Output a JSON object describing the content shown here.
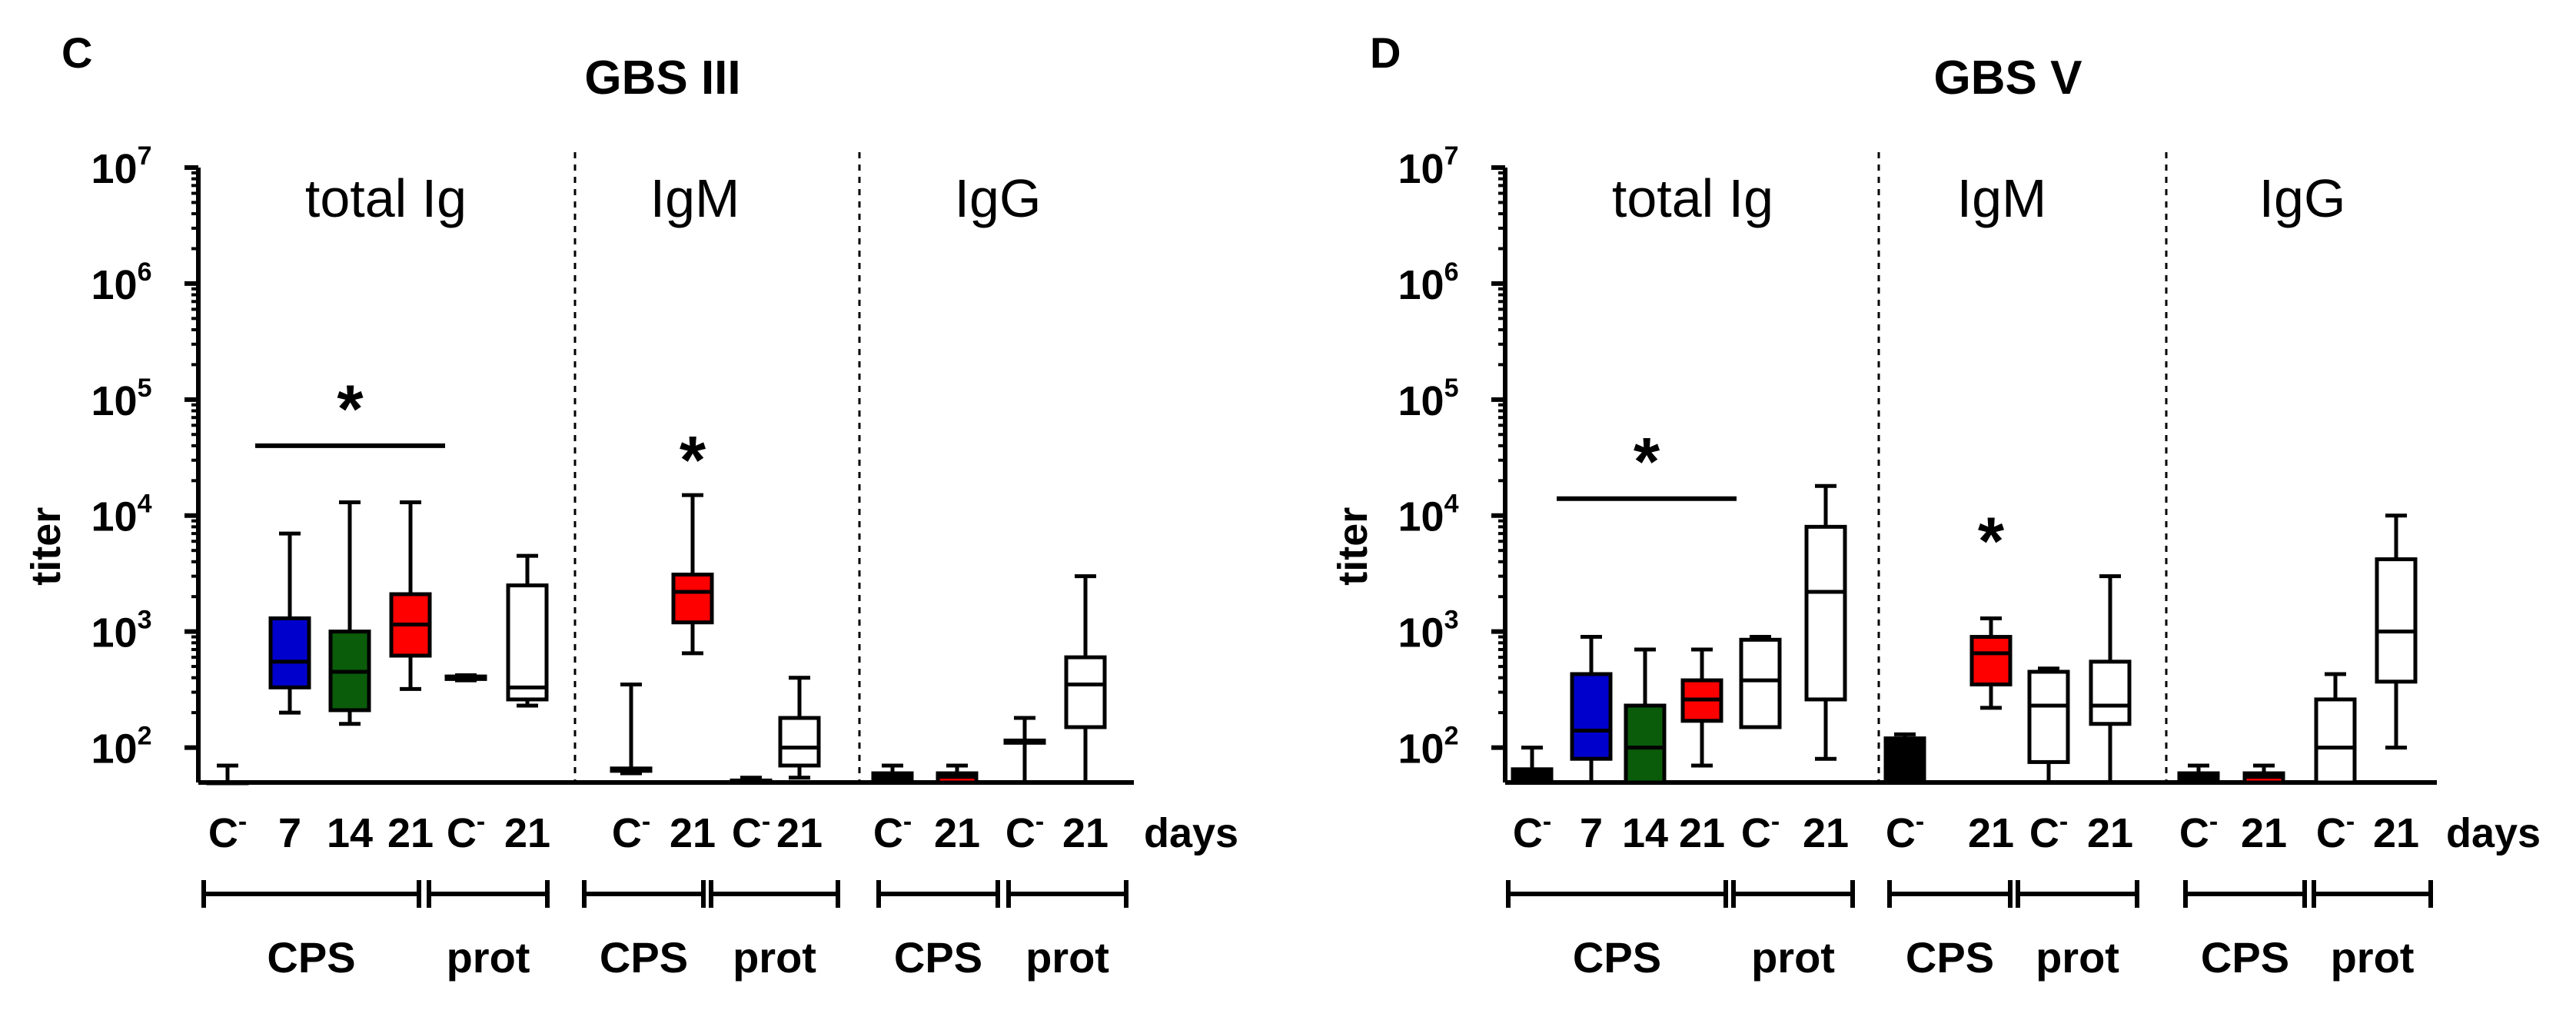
{
  "chart_data": [
    {
      "type": "box",
      "panel_letter": "C",
      "title": "GBS III",
      "ylabel": "titer",
      "yscale": "log",
      "ylim": [
        50,
        10000000
      ],
      "yticks": [
        {
          "base": "10",
          "exp": "2",
          "value": 100
        },
        {
          "base": "10",
          "exp": "3",
          "value": 1000
        },
        {
          "base": "10",
          "exp": "4",
          "value": 10000
        },
        {
          "base": "10",
          "exp": "5",
          "value": 100000
        },
        {
          "base": "10",
          "exp": "6",
          "value": 1000000
        },
        {
          "base": "10",
          "exp": "7",
          "value": 10000000
        }
      ],
      "x_unit_label": "days",
      "sections": [
        {
          "label": "total Ig",
          "groups": [
            {
              "label": "CPS",
              "boxes": [
                {
                  "category": "C",
                  "sup": "-",
                  "color": "#000000",
                  "whisker_low": 50,
                  "q1": 50,
                  "median": 50,
                  "q3": 50,
                  "whisker_high": 70
                },
                {
                  "category": "7",
                  "color": "#0000cc",
                  "whisker_low": 200,
                  "q1": 330,
                  "median": 550,
                  "q3": 1300,
                  "whisker_high": 7000
                },
                {
                  "category": "14",
                  "color": "#0a5c0a",
                  "whisker_low": 160,
                  "q1": 210,
                  "median": 450,
                  "q3": 1000,
                  "whisker_high": 13000
                },
                {
                  "category": "21",
                  "color": "#ff0000",
                  "whisker_low": 320,
                  "q1": 620,
                  "median": 1150,
                  "q3": 2100,
                  "whisker_high": 13000
                }
              ]
            },
            {
              "label": "prot",
              "boxes": [
                {
                  "category": "C",
                  "sup": "-",
                  "color": "#ffffff",
                  "whisker_low": 380,
                  "q1": 390,
                  "median": 400,
                  "q3": 410,
                  "whisker_high": 420
                },
                {
                  "category": "21",
                  "color": "#ffffff",
                  "whisker_low": 230,
                  "q1": 260,
                  "median": 330,
                  "q3": 2500,
                  "whisker_high": 4500
                }
              ]
            }
          ]
        },
        {
          "label": "IgM",
          "groups": [
            {
              "label": "CPS",
              "boxes": [
                {
                  "category": "C",
                  "sup": "-",
                  "color": "#000000",
                  "whisker_low": 60,
                  "q1": 63,
                  "median": 65,
                  "q3": 66,
                  "whisker_high": 350
                },
                {
                  "category": "21",
                  "color": "#ff0000",
                  "whisker_low": 650,
                  "q1": 1200,
                  "median": 2200,
                  "q3": 3100,
                  "whisker_high": 15000
                }
              ]
            },
            {
              "label": "prot",
              "boxes": [
                {
                  "category": "C",
                  "sup": "-",
                  "color": "#ffffff",
                  "whisker_low": 50,
                  "q1": 50,
                  "median": 50,
                  "q3": 52,
                  "whisker_high": 55
                },
                {
                  "category": "21",
                  "color": "#ffffff",
                  "whisker_low": 55,
                  "q1": 70,
                  "median": 100,
                  "q3": 180,
                  "whisker_high": 400
                }
              ]
            }
          ]
        },
        {
          "label": "IgG",
          "groups": [
            {
              "label": "CPS",
              "boxes": [
                {
                  "category": "C",
                  "sup": "-",
                  "color": "#000000",
                  "whisker_low": 50,
                  "q1": 50,
                  "median": 56,
                  "q3": 60,
                  "whisker_high": 70
                },
                {
                  "category": "21",
                  "color": "#ff0000",
                  "whisker_low": 50,
                  "q1": 50,
                  "median": 56,
                  "q3": 60,
                  "whisker_high": 70
                }
              ]
            },
            {
              "label": "prot",
              "boxes": [
                {
                  "category": "C",
                  "sup": "-",
                  "color": "#ffffff",
                  "whisker_low": 50,
                  "q1": 110,
                  "median": 112,
                  "q3": 115,
                  "whisker_high": 180
                },
                {
                  "category": "21",
                  "color": "#ffffff",
                  "whisker_low": 50,
                  "q1": 150,
                  "median": 350,
                  "q3": 600,
                  "whisker_high": 3000
                }
              ]
            }
          ]
        }
      ],
      "significance": [
        {
          "section": 0,
          "from_box": 1,
          "to_box": 3,
          "label": "*",
          "y_value": 40000
        },
        {
          "section": 1,
          "from_box": 1,
          "to_box": 1,
          "label": "*",
          "y_value": 30000
        }
      ]
    },
    {
      "type": "box",
      "panel_letter": "D",
      "title": "GBS V",
      "ylabel": "titer",
      "yscale": "log",
      "ylim": [
        50,
        10000000
      ],
      "yticks": [
        {
          "base": "10",
          "exp": "2",
          "value": 100
        },
        {
          "base": "10",
          "exp": "3",
          "value": 1000
        },
        {
          "base": "10",
          "exp": "4",
          "value": 10000
        },
        {
          "base": "10",
          "exp": "5",
          "value": 100000
        },
        {
          "base": "10",
          "exp": "6",
          "value": 1000000
        },
        {
          "base": "10",
          "exp": "7",
          "value": 10000000
        }
      ],
      "x_unit_label": "days",
      "sections": [
        {
          "label": "total Ig",
          "groups": [
            {
              "label": "CPS",
              "boxes": [
                {
                  "category": "C",
                  "sup": "-",
                  "color": "#000000",
                  "whisker_low": 50,
                  "q1": 50,
                  "median": 58,
                  "q3": 65,
                  "whisker_high": 100
                },
                {
                  "category": "7",
                  "color": "#0000cc",
                  "whisker_low": 50,
                  "q1": 80,
                  "median": 140,
                  "q3": 430,
                  "whisker_high": 900
                },
                {
                  "category": "14",
                  "color": "#0a5c0a",
                  "whisker_low": 50,
                  "q1": 50,
                  "median": 100,
                  "q3": 230,
                  "whisker_high": 700
                },
                {
                  "category": "21",
                  "color": "#ff0000",
                  "whisker_low": 70,
                  "q1": 170,
                  "median": 260,
                  "q3": 380,
                  "whisker_high": 700
                }
              ]
            },
            {
              "label": "prot",
              "boxes": [
                {
                  "category": "C",
                  "sup": "-",
                  "color": "#ffffff",
                  "whisker_low": 150,
                  "q1": 150,
                  "median": 380,
                  "q3": 850,
                  "whisker_high": 900
                },
                {
                  "category": "21",
                  "color": "#ffffff",
                  "whisker_low": 80,
                  "q1": 260,
                  "median": 2200,
                  "q3": 8000,
                  "whisker_high": 18000
                }
              ]
            }
          ]
        },
        {
          "label": "IgM",
          "groups": [
            {
              "label": "CPS",
              "boxes": [
                {
                  "category": "C",
                  "sup": "-",
                  "color": "#000000",
                  "whisker_low": 50,
                  "q1": 50,
                  "median": 110,
                  "q3": 120,
                  "whisker_high": 130
                },
                {
                  "category": "21",
                  "color": "#ff0000",
                  "whisker_low": 220,
                  "q1": 350,
                  "median": 650,
                  "q3": 900,
                  "whisker_high": 1300
                }
              ]
            },
            {
              "label": "prot",
              "boxes": [
                {
                  "category": "C",
                  "sup": "-",
                  "color": "#ffffff",
                  "whisker_low": 50,
                  "q1": 75,
                  "median": 230,
                  "q3": 450,
                  "whisker_high": 480
                },
                {
                  "category": "21",
                  "color": "#ffffff",
                  "whisker_low": 50,
                  "q1": 160,
                  "median": 230,
                  "q3": 550,
                  "whisker_high": 3000
                }
              ]
            }
          ]
        },
        {
          "label": "IgG",
          "groups": [
            {
              "label": "CPS",
              "boxes": [
                {
                  "category": "C",
                  "sup": "-",
                  "color": "#000000",
                  "whisker_low": 50,
                  "q1": 50,
                  "median": 56,
                  "q3": 60,
                  "whisker_high": 70
                },
                {
                  "category": "21",
                  "color": "#ff0000",
                  "whisker_low": 50,
                  "q1": 50,
                  "median": 56,
                  "q3": 60,
                  "whisker_high": 70
                }
              ]
            },
            {
              "label": "prot",
              "boxes": [
                {
                  "category": "C",
                  "sup": "-",
                  "color": "#ffffff",
                  "whisker_low": 50,
                  "q1": 50,
                  "median": 100,
                  "q3": 260,
                  "whisker_high": 430
                },
                {
                  "category": "21",
                  "color": "#ffffff",
                  "whisker_low": 100,
                  "q1": 370,
                  "median": 1000,
                  "q3": 4200,
                  "whisker_high": 10000
                }
              ]
            }
          ]
        }
      ],
      "significance": [
        {
          "section": 0,
          "from_box": 1,
          "to_box": 3,
          "label": "*",
          "y_value": 14000
        },
        {
          "section": 1,
          "from_box": 1,
          "to_box": 1,
          "label": "*",
          "y_value": 6000
        }
      ]
    }
  ]
}
